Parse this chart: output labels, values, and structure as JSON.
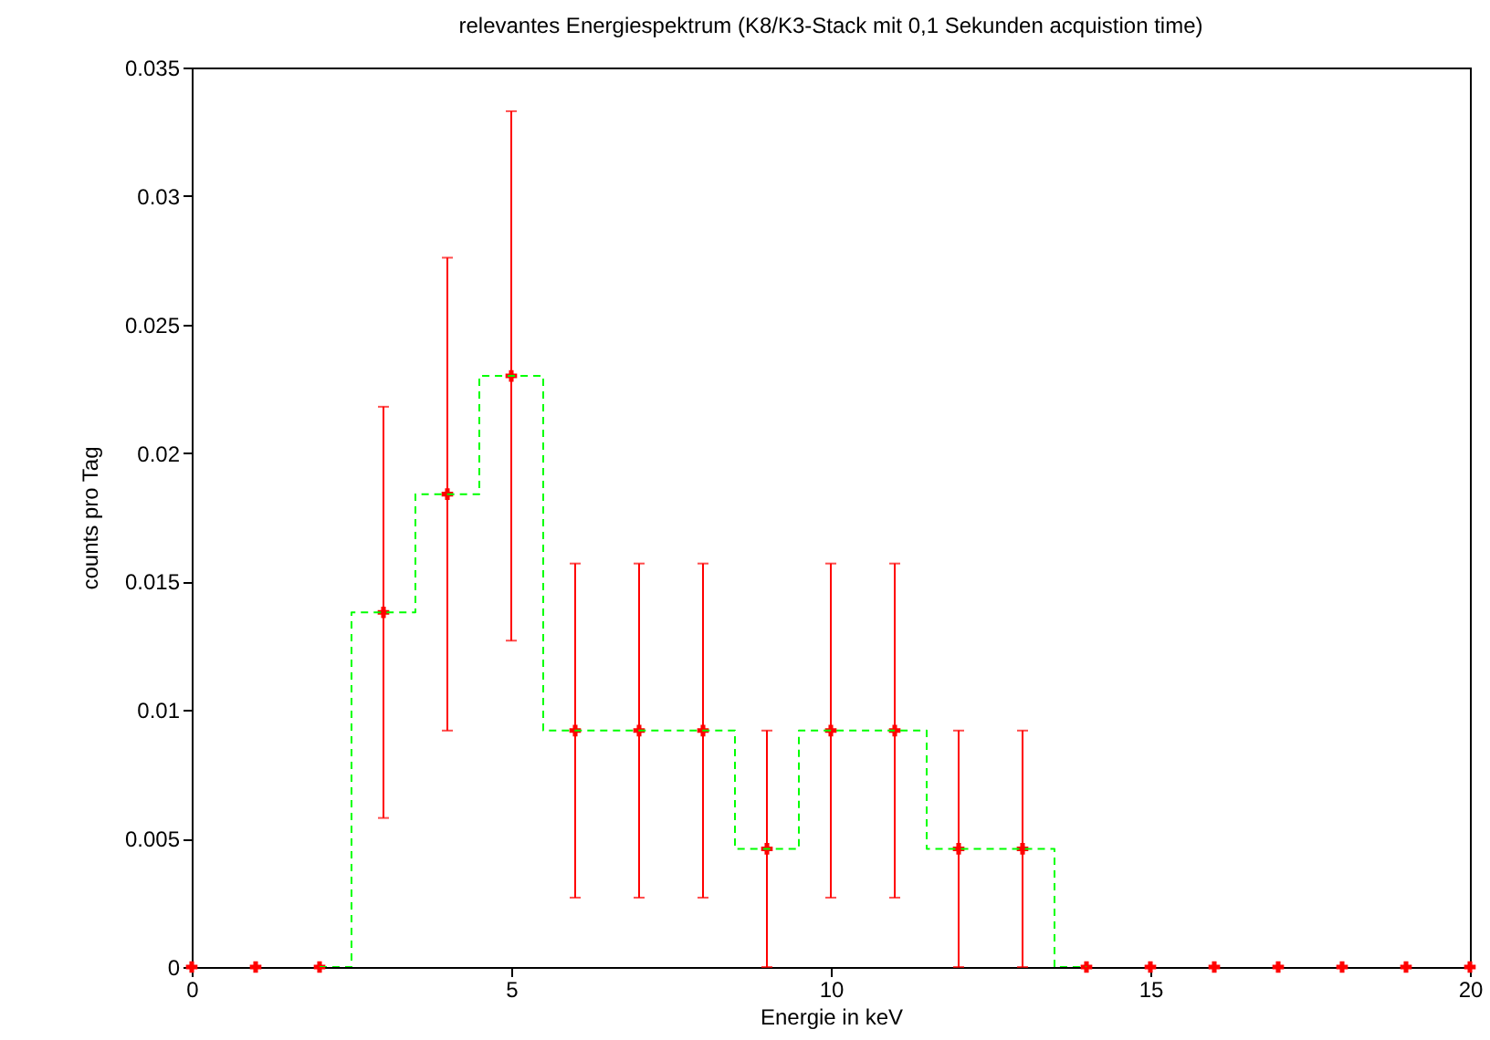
{
  "chart_data": {
    "type": "scatter",
    "title": "relevantes Energiespektrum (K8/K3-Stack mit 0,1 Sekunden acquistion time)",
    "xlabel": "Energie in keV",
    "ylabel": "counts pro Tag",
    "xlim": [
      0,
      20
    ],
    "xticks": [
      0,
      5,
      10,
      15,
      20
    ],
    "ylim": [
      0,
      0.035
    ],
    "yticks": [
      0,
      0.005,
      0.01,
      0.015,
      0.02,
      0.025,
      0.03,
      0.035
    ],
    "grid": false,
    "marker": "cross",
    "series": [
      {
        "type": "scatter",
        "color": "#ff0000",
        "x": [
          0,
          1,
          2,
          3,
          4,
          5,
          6,
          7,
          8,
          9,
          10,
          11,
          12,
          13,
          14,
          15,
          16,
          17,
          18,
          19,
          20
        ],
        "values": [
          0,
          0,
          0,
          0.0138,
          0.0184,
          0.023,
          0.0092,
          0.0092,
          0.0092,
          0.0046,
          0.0092,
          0.0092,
          0.0046,
          0.0046,
          0,
          0,
          0,
          0,
          0,
          0,
          0
        ],
        "errors": [
          null,
          null,
          null,
          [
            0.0058,
            0.0218
          ],
          [
            0.0092,
            0.0276
          ],
          [
            0.0127,
            0.0333
          ],
          [
            0.0027,
            0.0157
          ],
          [
            0.0027,
            0.0157
          ],
          [
            0.0027,
            0.0157
          ],
          [
            0,
            0.0092
          ],
          [
            0.0027,
            0.0157
          ],
          [
            0.0027,
            0.0157
          ],
          [
            0,
            0.0092
          ],
          [
            0,
            0.0092
          ],
          null,
          null,
          null,
          null,
          null,
          null,
          null
        ]
      },
      {
        "type": "step",
        "color": "#00ff00",
        "line_style": "dashed",
        "marker": "none",
        "x": [
          2,
          3,
          4,
          5,
          6,
          7,
          8,
          9,
          10,
          11,
          12,
          13,
          14
        ],
        "values": [
          0,
          0.0138,
          0.0184,
          0.023,
          0.0092,
          0.0092,
          0.0092,
          0.0046,
          0.0092,
          0.0092,
          0.0046,
          0.0046,
          0
        ]
      }
    ]
  }
}
